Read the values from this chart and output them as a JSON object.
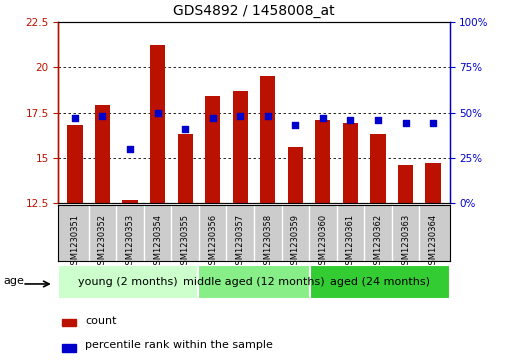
{
  "title": "GDS4892 / 1458008_at",
  "samples": [
    "GSM1230351",
    "GSM1230352",
    "GSM1230353",
    "GSM1230354",
    "GSM1230355",
    "GSM1230356",
    "GSM1230357",
    "GSM1230358",
    "GSM1230359",
    "GSM1230360",
    "GSM1230361",
    "GSM1230362",
    "GSM1230363",
    "GSM1230364"
  ],
  "counts": [
    16.8,
    17.9,
    12.7,
    21.2,
    16.3,
    18.4,
    18.7,
    19.5,
    15.6,
    17.1,
    16.9,
    16.3,
    14.6,
    14.7
  ],
  "percentiles": [
    47,
    48,
    30,
    50,
    41,
    47,
    48,
    48,
    43,
    47,
    46,
    46,
    44,
    44
  ],
  "ylim_left": [
    12.5,
    22.5
  ],
  "ylim_right": [
    0,
    100
  ],
  "yticks_left": [
    12.5,
    15.0,
    17.5,
    20.0,
    22.5
  ],
  "yticks_right": [
    0,
    25,
    50,
    75,
    100
  ],
  "bar_color": "#bb1100",
  "dot_color": "#0000cc",
  "background_color": "#ffffff",
  "plot_bg_color": "#ffffff",
  "xtick_cell_color": "#cccccc",
  "groups": [
    {
      "label": "young (2 months)",
      "start": 0,
      "end": 5,
      "color": "#ccffcc"
    },
    {
      "label": "middle aged (12 months)",
      "start": 5,
      "end": 9,
      "color": "#88ee88"
    },
    {
      "label": "aged (24 months)",
      "start": 9,
      "end": 14,
      "color": "#33cc33"
    }
  ],
  "age_label": "age",
  "legend_count_label": "count",
  "legend_pct_label": "percentile rank within the sample",
  "bar_width": 0.55,
  "base_value": 12.5,
  "title_fontsize": 10,
  "axis_label_fontsize": 8,
  "tick_label_fontsize": 7.5,
  "sample_label_fontsize": 6,
  "legend_fontsize": 8,
  "group_label_fontsize": 8
}
